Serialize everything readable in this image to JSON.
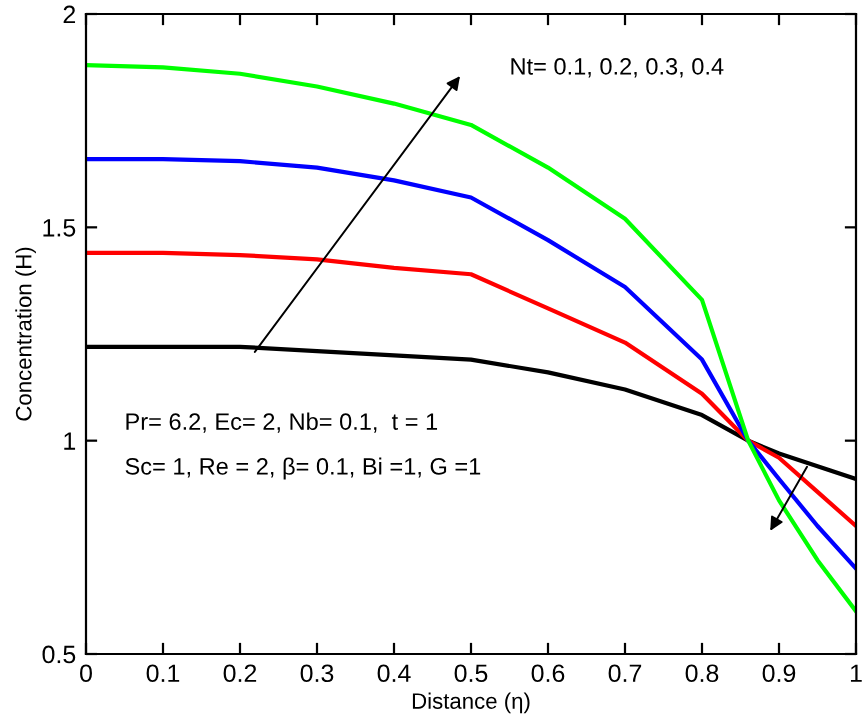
{
  "chart_data": {
    "type": "line",
    "xlabel": "Distance (η)",
    "ylabel": "Concentration (H)",
    "xlim": [
      0,
      1
    ],
    "ylim": [
      0.5,
      2
    ],
    "xticks": [
      0,
      0.1,
      0.2,
      0.3,
      0.4,
      0.5,
      0.6,
      0.7,
      0.8,
      0.9,
      1
    ],
    "yticks": [
      0.5,
      1,
      1.5,
      2
    ],
    "grid": false,
    "line_style": "solid",
    "annotations": [
      "Nt= 0.1, 0.2, 0.3, 0.4",
      "Pr= 6.2, Ec= 2, Nb= 0.1,  t = 1",
      "Sc= 1, Re = 2, β= 0.1, Bi =1, G =1"
    ],
    "x": [
      0,
      0.1,
      0.2,
      0.3,
      0.4,
      0.5,
      0.6,
      0.7,
      0.8,
      0.86,
      0.9,
      0.95,
      1
    ],
    "series": [
      {
        "color": "#000000",
        "values": [
          1.22,
          1.22,
          1.22,
          1.21,
          1.2,
          1.19,
          1.16,
          1.12,
          1.06,
          1.0,
          0.97,
          0.94,
          0.91
        ]
      },
      {
        "color": "#ff0000",
        "values": [
          1.44,
          1.44,
          1.435,
          1.425,
          1.405,
          1.39,
          1.31,
          1.23,
          1.11,
          1.0,
          0.96,
          0.88,
          0.8
        ]
      },
      {
        "color": "#0000ff",
        "values": [
          1.66,
          1.66,
          1.655,
          1.64,
          1.61,
          1.57,
          1.47,
          1.36,
          1.19,
          1.0,
          0.91,
          0.8,
          0.7
        ]
      },
      {
        "color": "#00ff00",
        "values": [
          1.88,
          1.875,
          1.86,
          1.83,
          1.79,
          1.74,
          1.64,
          1.52,
          1.33,
          1.0,
          0.86,
          0.72,
          0.6
        ]
      }
    ]
  }
}
